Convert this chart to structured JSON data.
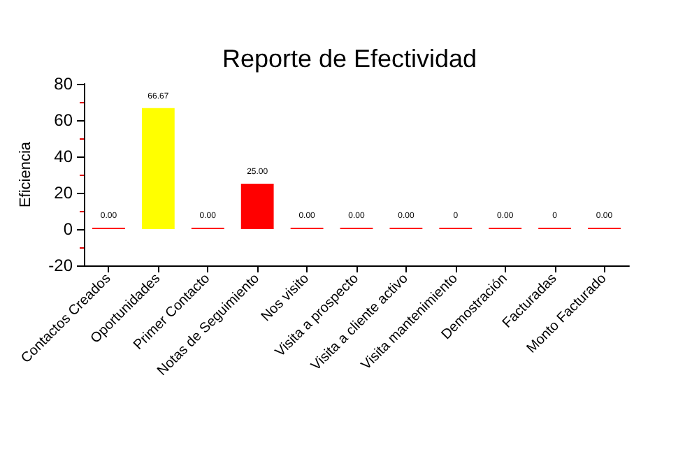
{
  "chart_data": {
    "type": "bar",
    "title": "Reporte de Efectividad",
    "ylabel": "Eficiencia",
    "categories": [
      "Contactos Creados",
      "Oportunidades",
      "Primer Contacto",
      "Notas de Seguimiento",
      "Nos visito",
      "Visita a prospecto",
      "Visita a cliente activo",
      "Visita mantenimiento",
      "Demostración",
      "Facturadas",
      "Monto Facturado"
    ],
    "values": [
      0,
      66.67,
      0,
      25,
      0,
      0,
      0,
      0,
      0,
      0,
      0
    ],
    "value_labels": [
      "0.00",
      "66.67",
      "0.00",
      "25.00",
      "0.00",
      "0.00",
      "0.00",
      "0",
      "0.00",
      "0",
      "0.00"
    ],
    "colors": [
      "#ff0000",
      "#ffff00",
      "#ff0000",
      "#ff0000",
      "#ff0000",
      "#ff0000",
      "#ff0000",
      "#ff0000",
      "#ff0000",
      "#ff0000",
      "#ff0000"
    ],
    "ylim": [
      -20,
      80
    ],
    "yticks": [
      -20,
      0,
      20,
      40,
      60,
      80
    ],
    "grid": false
  }
}
